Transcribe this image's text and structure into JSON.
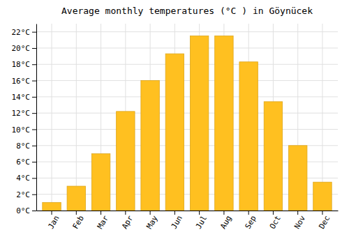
{
  "chart_data": {
    "type": "bar",
    "title": "Average monthly temperatures (°C ) in Göynücek",
    "categories": [
      "Jan",
      "Feb",
      "Mar",
      "Apr",
      "May",
      "Jun",
      "Jul",
      "Aug",
      "Sep",
      "Oct",
      "Nov",
      "Dec"
    ],
    "values": [
      1.0,
      3.0,
      7.0,
      12.2,
      16.0,
      19.3,
      21.5,
      21.5,
      18.3,
      13.4,
      8.0,
      3.5
    ],
    "color": "#FFC020",
    "ylim": [
      0,
      23
    ],
    "yticks": [
      {
        "value": 0,
        "label": "0°C"
      },
      {
        "value": 2,
        "label": "2°C"
      },
      {
        "value": 4,
        "label": "4°C"
      },
      {
        "value": 6,
        "label": "6°C"
      },
      {
        "value": 8,
        "label": "8°C"
      },
      {
        "value": 10,
        "label": "10°C"
      },
      {
        "value": 12,
        "label": "12°C"
      },
      {
        "value": 14,
        "label": "14°C"
      },
      {
        "value": 16,
        "label": "16°C"
      },
      {
        "value": 18,
        "label": "18°C"
      },
      {
        "value": 20,
        "label": "20°C"
      },
      {
        "value": 22,
        "label": "22°C"
      }
    ],
    "grid": true
  }
}
